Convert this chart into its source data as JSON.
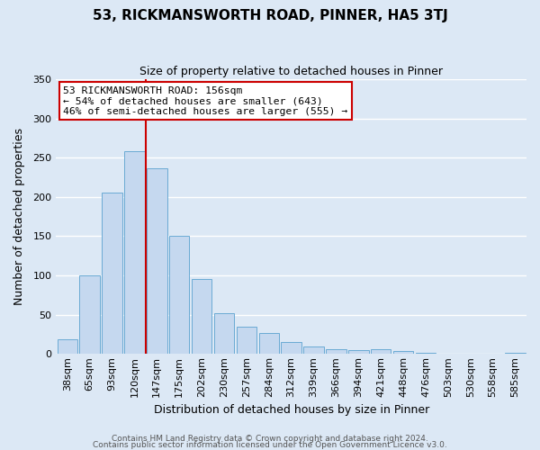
{
  "title": "53, RICKMANSWORTH ROAD, PINNER, HA5 3TJ",
  "subtitle": "Size of property relative to detached houses in Pinner",
  "xlabel": "Distribution of detached houses by size in Pinner",
  "ylabel": "Number of detached properties",
  "bar_labels": [
    "38sqm",
    "65sqm",
    "93sqm",
    "120sqm",
    "147sqm",
    "175sqm",
    "202sqm",
    "230sqm",
    "257sqm",
    "284sqm",
    "312sqm",
    "339sqm",
    "366sqm",
    "394sqm",
    "421sqm",
    "448sqm",
    "476sqm",
    "503sqm",
    "530sqm",
    "558sqm",
    "585sqm"
  ],
  "bar_values": [
    19,
    100,
    205,
    258,
    237,
    150,
    96,
    52,
    35,
    27,
    15,
    9,
    6,
    5,
    6,
    4,
    2,
    0,
    0,
    0,
    2
  ],
  "bar_color": "#c5d8ef",
  "bar_edge_color": "#6aaad4",
  "vline_color": "#cc0000",
  "ylim": [
    0,
    350
  ],
  "yticks": [
    0,
    50,
    100,
    150,
    200,
    250,
    300,
    350
  ],
  "annotation_title": "53 RICKMANSWORTH ROAD: 156sqm",
  "annotation_line1": "← 54% of detached houses are smaller (643)",
  "annotation_line2": "46% of semi-detached houses are larger (555) →",
  "annotation_box_facecolor": "#ffffff",
  "annotation_box_edgecolor": "#cc0000",
  "footer1": "Contains HM Land Registry data © Crown copyright and database right 2024.",
  "footer2": "Contains public sector information licensed under the Open Government Licence v3.0.",
  "bg_color": "#dce8f5",
  "plot_bg_color": "#dce8f5",
  "grid_color": "#ffffff",
  "title_fontsize": 11,
  "subtitle_fontsize": 9,
  "xlabel_fontsize": 9,
  "ylabel_fontsize": 9,
  "tick_fontsize": 8,
  "footer_fontsize": 6.5,
  "vline_bar_index": 4
}
